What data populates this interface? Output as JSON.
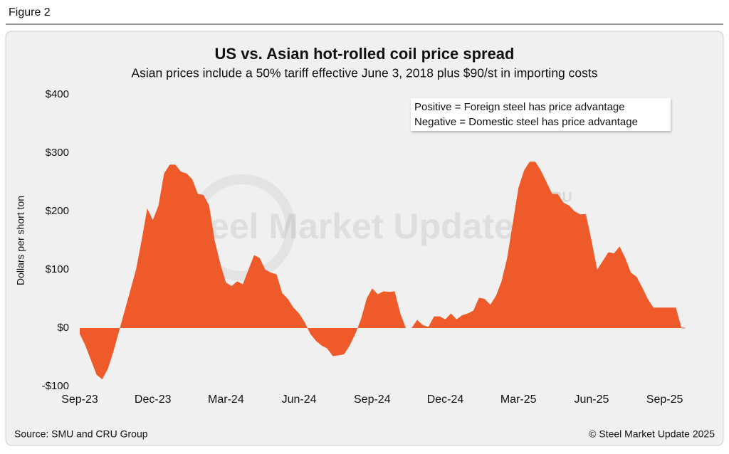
{
  "figure_label": "Figure 2",
  "source": "Source: SMU and CRU Group",
  "copyright": "© Steel Market Update 2025",
  "chart_data": {
    "type": "area",
    "title": "US vs. Asian hot-rolled coil price spread",
    "subtitle": "Asian prices include a 50% tariff effective June 3, 2018 plus $90/st in importing costs",
    "ylabel": "Dollars per short ton",
    "annotations": [
      "Positive = Foreign steel has price advantage",
      "Negative = Domestic steel has price advantage"
    ],
    "watermark": "Steel Market Update",
    "watermark_logo": "CRU",
    "color": "#ef5a2a",
    "grid": false,
    "ylim": [
      -100,
      400
    ],
    "yticks": [
      {
        "value": -100,
        "label": "-$100"
      },
      {
        "value": 0,
        "label": "$0"
      },
      {
        "value": 100,
        "label": "$100"
      },
      {
        "value": 200,
        "label": "$200"
      },
      {
        "value": 300,
        "label": "$300"
      },
      {
        "value": 400,
        "label": "$400"
      }
    ],
    "categories": [
      "Sep-23",
      null,
      null,
      null,
      null,
      null,
      null,
      null,
      null,
      null,
      null,
      null,
      null,
      "Dec-23",
      null,
      null,
      null,
      null,
      null,
      null,
      null,
      null,
      null,
      null,
      null,
      null,
      "Mar-24",
      null,
      null,
      null,
      null,
      null,
      null,
      null,
      null,
      null,
      null,
      null,
      null,
      "Jun-24",
      null,
      null,
      null,
      null,
      null,
      null,
      null,
      null,
      null,
      null,
      null,
      null,
      "Sep-24",
      null,
      null,
      null,
      null,
      null,
      null,
      null,
      null,
      null,
      null,
      null,
      null,
      "Dec-24",
      null,
      null,
      null,
      null,
      null,
      null,
      null,
      null,
      null,
      null,
      null,
      null,
      "Mar-25",
      null,
      null,
      null,
      null,
      null,
      null,
      null,
      null,
      null,
      null,
      null,
      null,
      "Jun-25",
      null,
      null,
      null,
      null,
      null,
      null,
      null,
      null,
      null,
      null,
      null,
      null,
      "Sep-25",
      null,
      null,
      null
    ],
    "values": [
      -10,
      -30,
      -55,
      -80,
      -88,
      -70,
      -40,
      -5,
      30,
      65,
      100,
      150,
      205,
      185,
      210,
      265,
      280,
      280,
      268,
      265,
      255,
      230,
      228,
      210,
      150,
      110,
      78,
      72,
      80,
      75,
      100,
      125,
      120,
      100,
      95,
      92,
      60,
      50,
      35,
      25,
      10,
      -10,
      -22,
      -30,
      -35,
      -48,
      -47,
      -45,
      -30,
      -10,
      15,
      50,
      68,
      58,
      63,
      62,
      63,
      25,
      0,
      0,
      14,
      5,
      2,
      20,
      20,
      15,
      25,
      15,
      22,
      25,
      30,
      52,
      50,
      40,
      55,
      80,
      120,
      180,
      240,
      270,
      285,
      285,
      270,
      250,
      230,
      230,
      215,
      210,
      200,
      195,
      195,
      150,
      100,
      115,
      130,
      128,
      140,
      120,
      95,
      88,
      70,
      50,
      35,
      35,
      35,
      35,
      35,
      0
    ]
  }
}
